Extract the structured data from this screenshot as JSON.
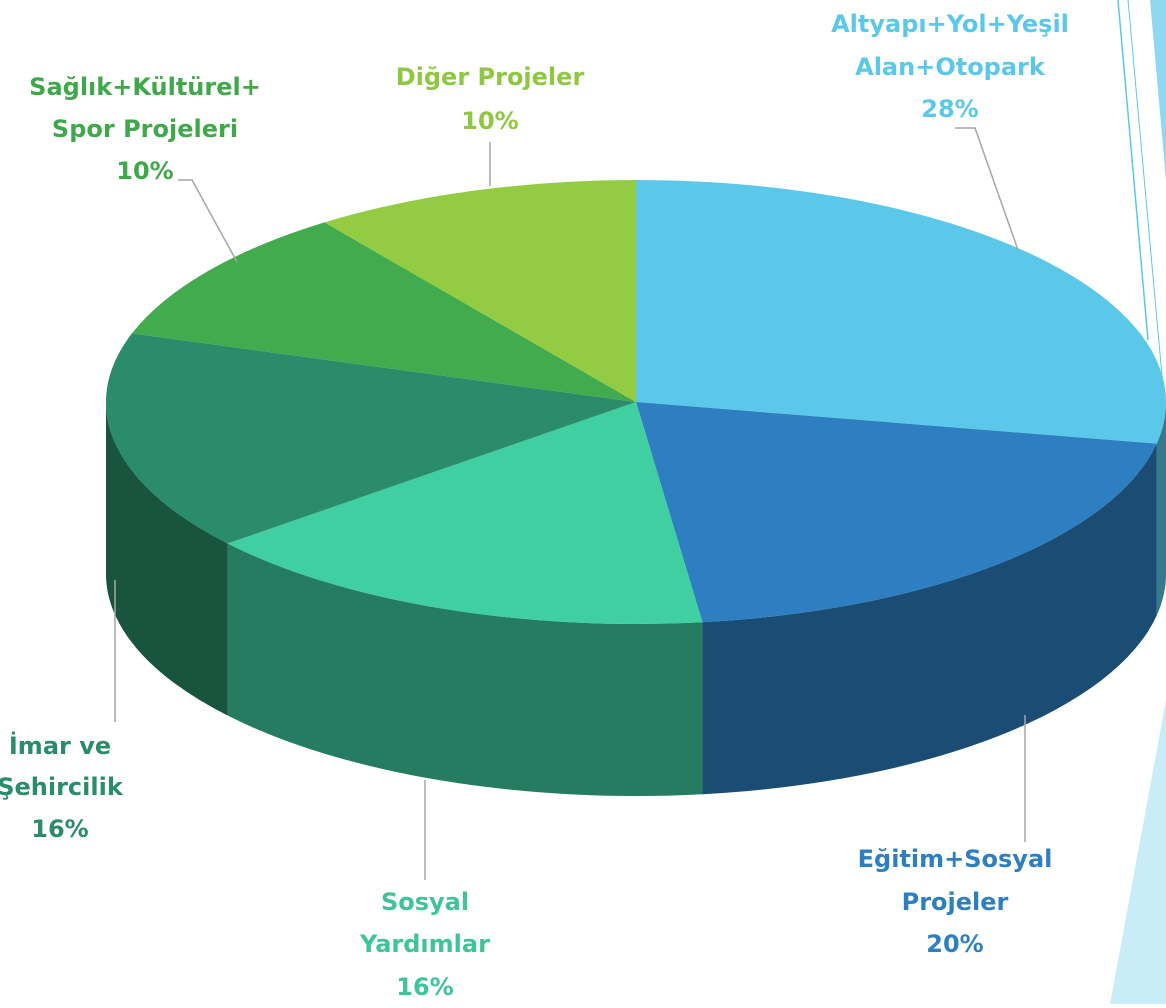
{
  "chart_data": {
    "type": "pie3d",
    "categories": [
      [
        "Altyapı+Yol+Yeşil",
        "Alan+Otopark"
      ],
      [
        "Eğitim+Sosyal",
        "Projeler"
      ],
      [
        "Sosyal",
        "Yardımlar"
      ],
      [
        "İmar ve",
        "Şehircilik"
      ],
      [
        "Sağlık+Kültürel+",
        "Spor Projeleri"
      ],
      [
        "Diğer Projeler"
      ]
    ],
    "values": [
      28,
      20,
      16,
      16,
      10,
      10
    ],
    "value_labels": [
      "28%",
      "20%",
      "16%",
      "16%",
      "10%",
      "10%"
    ],
    "colors": [
      "#5bc8ea",
      "#2e7fc1",
      "#40cfa0",
      "#2a8c6a",
      "#42ab4e",
      "#93cc42"
    ]
  }
}
